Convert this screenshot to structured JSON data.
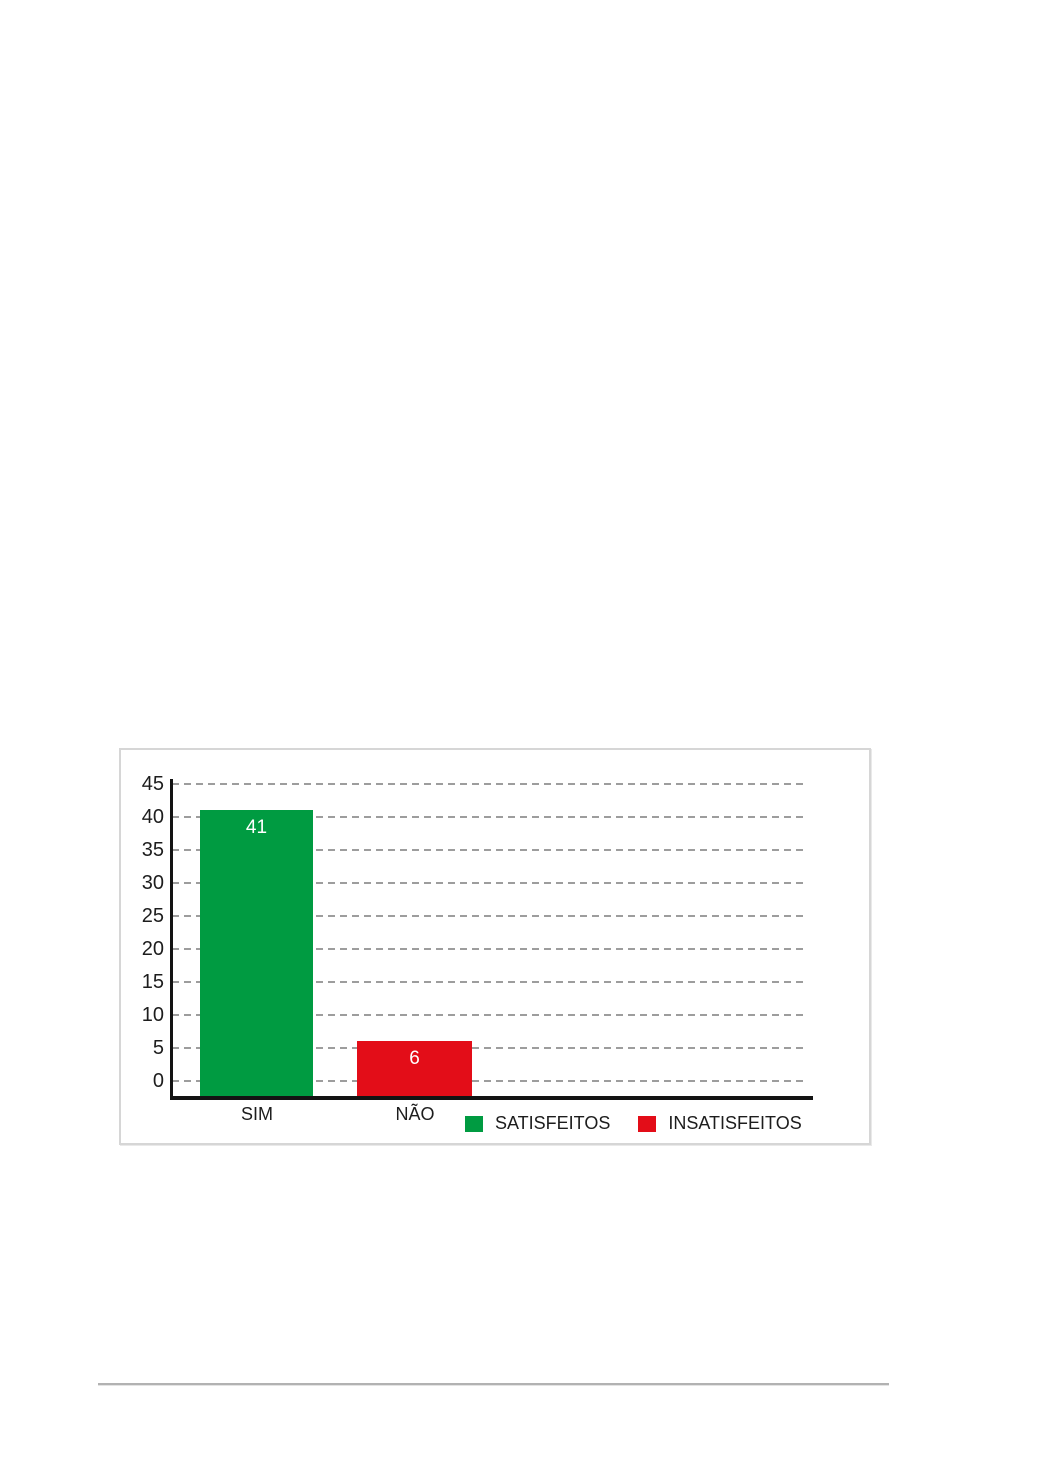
{
  "chart_data": {
    "type": "bar",
    "title": "",
    "xlabel": "",
    "ylabel": "",
    "categories": [
      "SIM",
      "NÃO"
    ],
    "values": [
      41,
      6
    ],
    "data_labels": [
      "41",
      "6"
    ],
    "bar_colors": [
      "#009B41",
      "#E30D18"
    ],
    "yticks": [
      0,
      5,
      10,
      15,
      20,
      25,
      30,
      35,
      40,
      45
    ],
    "ylim": [
      0,
      45
    ],
    "grid": "horizontal-dashed",
    "legend_position": "bottom-right",
    "legend": [
      {
        "label": "SATISFEITOS",
        "color": "#009B41"
      },
      {
        "label": "INSATISFEITOS",
        "color": "#E30D18"
      }
    ]
  },
  "colors": {
    "page_background": "#ffffff",
    "chart_border": "#d6d6d6",
    "axis": "#131313",
    "gridline": "#9d9d9d",
    "tick_text": "#1d1d1d",
    "category_text": "#1d1d1d",
    "legend_text": "#1d1d1d",
    "bar_label_text": "#ffffff",
    "footer_rule": "#b2b2b2"
  }
}
